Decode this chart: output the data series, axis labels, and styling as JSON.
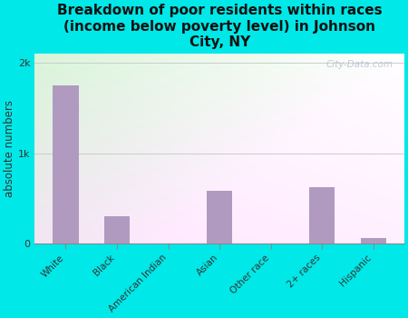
{
  "title": "Breakdown of poor residents within races\n(income below poverty level) in Johnson\nCity, NY",
  "categories": [
    "White",
    "Black",
    "American Indian",
    "Asian",
    "Other race",
    "2+ races",
    "Hispanic"
  ],
  "values": [
    1750,
    300,
    0,
    580,
    0,
    620,
    60
  ],
  "bar_color": "#b09ac0",
  "ylabel": "absolute numbers",
  "yticks": [
    0,
    1000,
    2000
  ],
  "ytick_labels": [
    "0",
    "1k",
    "2k"
  ],
  "ylim": [
    0,
    2100
  ],
  "background_color": "#00e8e8",
  "plot_bg_color_topleft": "#d8f0d8",
  "plot_bg_color_right": "#f0f8f0",
  "plot_bg_color_bottom": "#ffffff",
  "watermark": "City-Data.com",
  "title_fontsize": 11,
  "axis_label_fontsize": 8.5
}
